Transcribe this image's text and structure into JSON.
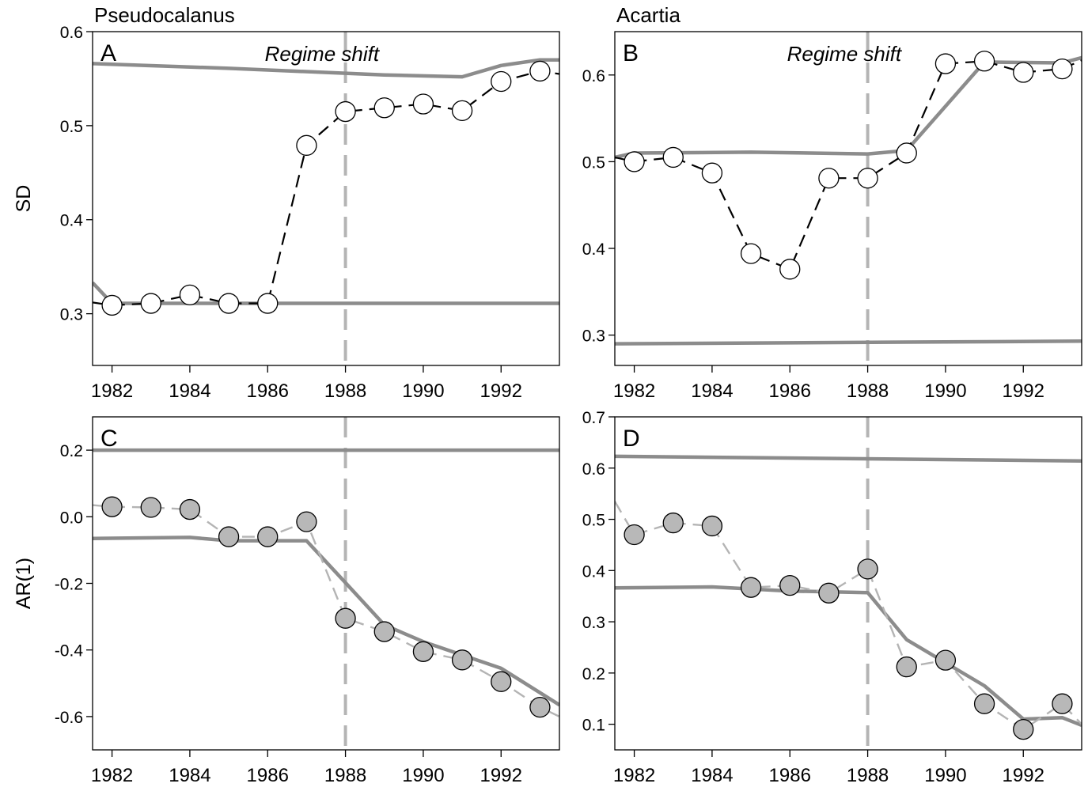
{
  "colors": {
    "frame": "#000000",
    "envelope": "#8c8c8c",
    "regime_line": "#b4b4b4",
    "sd_marker_fill": "#ffffff",
    "ar_marker_fill": "#b8b8b8",
    "ar_dash": "#b4b4b4"
  },
  "chart_data": [
    {
      "panel": "A",
      "title": "Pseudocalanus",
      "type": "line",
      "ylabel": "SD",
      "annotation": "Regime shift",
      "regime_year": 1988,
      "xlim": [
        1981.5,
        1993.5
      ],
      "ylim": [
        0.245,
        0.6
      ],
      "x_ticks": [
        1982,
        1984,
        1986,
        1988,
        1990,
        1992
      ],
      "y_ticks": [
        0.3,
        0.4,
        0.5,
        0.6
      ],
      "y_tick_labels": [
        "0.3",
        "0.4",
        "0.5",
        "0.6"
      ],
      "markers": "open",
      "series": [
        {
          "x": [
            1981.5,
            1982,
            1983,
            1984,
            1985,
            1986,
            1987,
            1988,
            1989,
            1990,
            1991,
            1992,
            1993,
            1993.5
          ],
          "values": [
            0.312,
            0.309,
            0.311,
            0.32,
            0.311,
            0.311,
            0.479,
            0.515,
            0.519,
            0.523,
            0.516,
            0.547,
            0.558,
            0.555
          ]
        }
      ],
      "envelope_upper": {
        "x": [
          1981.5,
          1985,
          1989,
          1991,
          1992,
          1993,
          1993.5
        ],
        "values": [
          0.566,
          0.561,
          0.554,
          0.552,
          0.564,
          0.57,
          0.57
        ]
      },
      "envelope_lower": {
        "x": [
          1981.5,
          1982,
          1984,
          1986,
          1988,
          1990,
          1993.5
        ],
        "values": [
          0.333,
          0.311,
          0.311,
          0.311,
          0.311,
          0.311,
          0.311
        ]
      }
    },
    {
      "panel": "B",
      "title": "Acartia",
      "type": "line",
      "ylabel": "",
      "annotation": "Regime shift",
      "regime_year": 1988,
      "xlim": [
        1981.5,
        1993.5
      ],
      "ylim": [
        0.265,
        0.65
      ],
      "x_ticks": [
        1982,
        1984,
        1986,
        1988,
        1990,
        1992
      ],
      "y_ticks": [
        0.3,
        0.4,
        0.5,
        0.6
      ],
      "y_tick_labels": [
        "0.3",
        "0.4",
        "0.5",
        "0.6"
      ],
      "markers": "open",
      "series": [
        {
          "x": [
            1981.5,
            1982,
            1983,
            1984,
            1985,
            1986,
            1987,
            1988,
            1989,
            1990,
            1991,
            1992,
            1993,
            1993.5
          ],
          "values": [
            0.505,
            0.5,
            0.505,
            0.487,
            0.394,
            0.376,
            0.481,
            0.481,
            0.51,
            0.613,
            0.616,
            0.603,
            0.607,
            0.617
          ]
        }
      ],
      "envelope_upper": {
        "x": [
          1981.5,
          1982,
          1985,
          1988,
          1989,
          1991,
          1993,
          1993.5
        ],
        "values": [
          0.505,
          0.51,
          0.511,
          0.509,
          0.513,
          0.615,
          0.614,
          0.62
        ]
      },
      "envelope_lower": {
        "x": [
          1981.5,
          1993.5
        ],
        "values": [
          0.29,
          0.293
        ]
      }
    },
    {
      "panel": "C",
      "title": "",
      "type": "line",
      "ylabel": "AR(1)",
      "annotation": "",
      "regime_year": 1988,
      "xlim": [
        1981.5,
        1993.5
      ],
      "ylim": [
        -0.7,
        0.3
      ],
      "x_ticks": [
        1982,
        1984,
        1986,
        1988,
        1990,
        1992
      ],
      "y_ticks": [
        -0.6,
        -0.4,
        -0.2,
        0.0,
        0.2
      ],
      "y_tick_labels": [
        "-0.6",
        "-0.4",
        "-0.2",
        "0.0",
        "0.2"
      ],
      "markers": "filled",
      "series": [
        {
          "x": [
            1981.5,
            1982,
            1983,
            1984,
            1985,
            1986,
            1987,
            1988,
            1989,
            1990,
            1991,
            1992,
            1993,
            1993.5
          ],
          "values": [
            0.035,
            0.03,
            0.028,
            0.022,
            -0.06,
            -0.06,
            -0.015,
            -0.305,
            -0.345,
            -0.405,
            -0.43,
            -0.495,
            -0.572,
            -0.6
          ]
        }
      ],
      "envelope_upper": {
        "x": [
          1981.5,
          1993.5
        ],
        "values": [
          0.2,
          0.2
        ]
      },
      "envelope_lower": {
        "x": [
          1981.5,
          1984,
          1985,
          1987,
          1988,
          1989,
          1990,
          1992,
          1993.5
        ],
        "values": [
          -0.065,
          -0.062,
          -0.072,
          -0.072,
          -0.198,
          -0.325,
          -0.375,
          -0.455,
          -0.565
        ]
      }
    },
    {
      "panel": "D",
      "title": "",
      "type": "line",
      "ylabel": "",
      "annotation": "",
      "regime_year": 1988,
      "xlim": [
        1981.5,
        1993.5
      ],
      "ylim": [
        0.05,
        0.7
      ],
      "x_ticks": [
        1982,
        1984,
        1986,
        1988,
        1990,
        1992
      ],
      "y_ticks": [
        0.1,
        0.2,
        0.3,
        0.4,
        0.5,
        0.6,
        0.7
      ],
      "y_tick_labels": [
        "0.1",
        "0.2",
        "0.3",
        "0.4",
        "0.5",
        "0.6",
        "0.7"
      ],
      "markers": "filled",
      "series": [
        {
          "x": [
            1981.5,
            1982,
            1983,
            1984,
            1985,
            1986,
            1987,
            1988,
            1989,
            1990,
            1991,
            1992,
            1993,
            1993.5
          ],
          "values": [
            0.535,
            0.47,
            0.493,
            0.487,
            0.367,
            0.371,
            0.356,
            0.403,
            0.212,
            0.225,
            0.14,
            0.09,
            0.14,
            0.1
          ]
        }
      ],
      "envelope_upper": {
        "x": [
          1981.5,
          1993.5
        ],
        "values": [
          0.623,
          0.614
        ]
      },
      "envelope_lower": {
        "x": [
          1981.5,
          1984,
          1986,
          1988,
          1989,
          1991,
          1992,
          1993,
          1993.5
        ],
        "values": [
          0.366,
          0.368,
          0.36,
          0.357,
          0.265,
          0.175,
          0.11,
          0.113,
          0.098
        ]
      }
    }
  ]
}
